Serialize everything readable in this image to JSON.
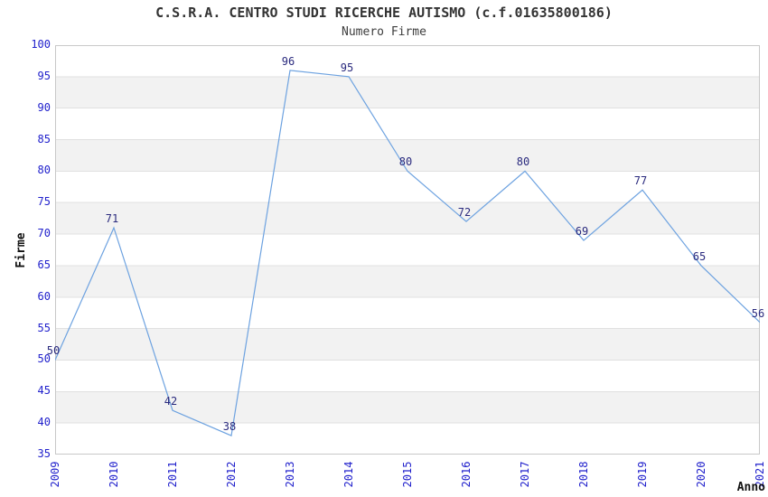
{
  "chart": {
    "title": "C.S.R.A. CENTRO STUDI RICERCHE AUTISMO (c.f.01635800186)",
    "subtitle": "Numero Firme",
    "xlabel": "Anno",
    "ylabel": "Firme"
  },
  "chart_data": {
    "type": "line",
    "title": "C.S.R.A. CENTRO STUDI RICERCHE AUTISMO (c.f.01635800186)",
    "subtitle": "Numero Firme",
    "xlabel": "Anno",
    "ylabel": "Firme",
    "categories": [
      "2009",
      "2010",
      "2011",
      "2012",
      "2013",
      "2014",
      "2015",
      "2016",
      "2017",
      "2018",
      "2019",
      "2020",
      "2021"
    ],
    "series": [
      {
        "name": "Numero Firme",
        "values": [
          50,
          71,
          42,
          38,
          96,
          95,
          80,
          72,
          80,
          69,
          77,
          65,
          56
        ]
      }
    ],
    "ylim": [
      35,
      100
    ],
    "ytick_step": 5,
    "grid": true,
    "alternating_bands": true,
    "data_labels_shown": true,
    "legend_position": "none",
    "colors": {
      "line": "#6da2e0",
      "band": "#f2f2f2",
      "gridline": "#e0e0e0",
      "plot_border": "#c8c8c8",
      "tick_label": "#2121cc",
      "data_label": "#2a2a7e",
      "title": "#333333"
    }
  }
}
